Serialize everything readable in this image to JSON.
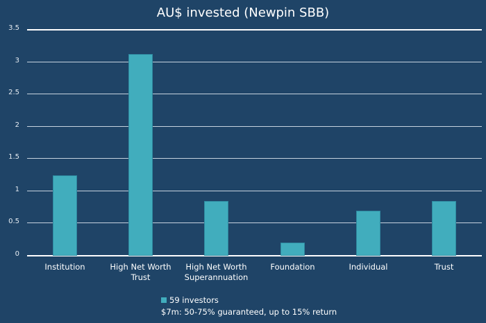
{
  "chart_data": {
    "type": "bar",
    "title": "AU$ invested (Newpin SBB)",
    "categories": [
      "Institution",
      "High Net Worth Trust",
      "High Net Worth Superannuation",
      "Foundation",
      "Individual",
      "Trust"
    ],
    "category_lines": [
      [
        "Institution"
      ],
      [
        "High Net Worth",
        "Trust"
      ],
      [
        "High Net Worth",
        "Superannuation"
      ],
      [
        "Foundation"
      ],
      [
        "Individual"
      ],
      [
        "Trust"
      ]
    ],
    "series": [
      {
        "name": "59 investors",
        "values": [
          1.25,
          3.12,
          0.85,
          0.2,
          0.7,
          0.85
        ],
        "color": "#41adbd"
      }
    ],
    "xlabel": "",
    "ylabel": "",
    "ylim": [
      0,
      3.5
    ],
    "yticks": [
      "0",
      "0.5",
      "1",
      "1.5",
      "2",
      "2.5",
      "3",
      "3.5"
    ],
    "grid": true,
    "legend_position": "bottom",
    "annotation": "$7m: 50-75% guaranteed, up to 15% return"
  },
  "legend": {
    "entry": "59 investors",
    "note": "$7m: 50-75% guaranteed, up to 15% return"
  },
  "colors": {
    "background": "#1f4467",
    "bar": "#41adbd",
    "grid": "#c7d3df"
  }
}
